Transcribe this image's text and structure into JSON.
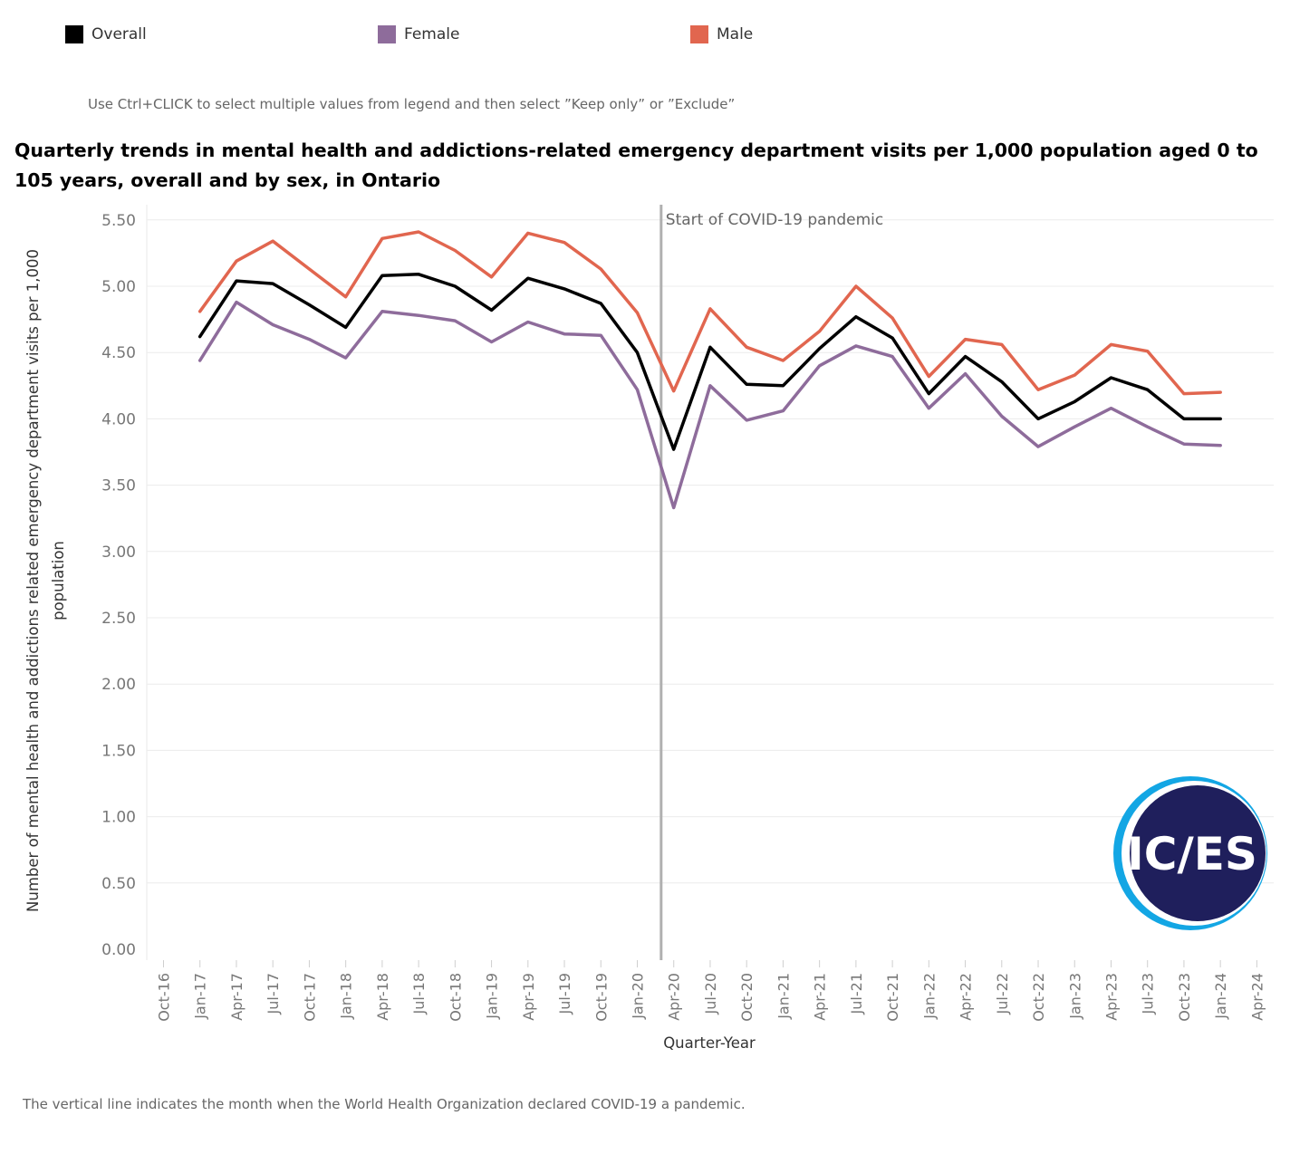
{
  "legend": {
    "items": [
      {
        "label": "Overall",
        "color": "#000000"
      },
      {
        "label": "Female",
        "color": "#8e6c9b"
      },
      {
        "label": "Male",
        "color": "#e1664f"
      }
    ]
  },
  "hint": "Use Ctrl+CLICK to select multiple values from legend and then select ”Keep only” or ”Exclude”",
  "title": "Quarterly trends in mental health and addictions-related emergency department visits per 1,000 population aged 0 to 105 years, overall and by sex, in Ontario",
  "footnote": "The vertical line indicates the month when the World Health Organization declared COVID-19 a pandemic.",
  "logo": {
    "text": "IC/ES"
  },
  "chart_data": {
    "type": "line",
    "xlabel": "Quarter-Year",
    "ylabel_lines": [
      "Number of mental health and addictions related emergency department visits per 1,000",
      "population"
    ],
    "ylim": [
      0,
      5.7
    ],
    "yticks": [
      "0.00",
      "0.50",
      "1.00",
      "1.50",
      "2.00",
      "2.50",
      "3.00",
      "3.50",
      "4.00",
      "4.50",
      "5.00",
      "5.50"
    ],
    "x_tick_labels": [
      "Oct-16",
      "Jan-17",
      "Apr-17",
      "Jul-17",
      "Oct-17",
      "Jan-18",
      "Apr-18",
      "Jul-18",
      "Oct-18",
      "Jan-19",
      "Apr-19",
      "Jul-19",
      "Oct-19",
      "Jan-20",
      "Apr-20",
      "Jul-20",
      "Oct-20",
      "Jan-21",
      "Apr-21",
      "Jul-21",
      "Oct-21",
      "Jan-22",
      "Apr-22",
      "Jul-22",
      "Oct-22",
      "Jan-23",
      "Apr-23",
      "Jul-23",
      "Oct-23",
      "Jan-24",
      "Apr-24"
    ],
    "x": [
      "Jan-17",
      "Apr-17",
      "Jul-17",
      "Oct-17",
      "Jan-18",
      "Apr-18",
      "Jul-18",
      "Oct-18",
      "Jan-19",
      "Apr-19",
      "Jul-19",
      "Oct-19",
      "Jan-20",
      "Apr-20",
      "Jul-20",
      "Oct-20",
      "Jan-21",
      "Apr-21",
      "Jul-21",
      "Oct-21",
      "Jan-22",
      "Apr-22",
      "Jul-22",
      "Oct-22",
      "Jan-23",
      "Apr-23",
      "Jul-23",
      "Oct-23",
      "Jan-24"
    ],
    "series": [
      {
        "name": "Male",
        "color": "#e1664f",
        "values": [
          4.81,
          5.19,
          5.34,
          5.13,
          4.92,
          5.36,
          5.41,
          5.27,
          5.07,
          5.4,
          5.33,
          5.13,
          4.8,
          4.21,
          4.83,
          4.54,
          4.44,
          4.66,
          5.0,
          4.76,
          4.32,
          4.6,
          4.56,
          4.22,
          4.33,
          4.56,
          4.51,
          4.19,
          4.2
        ]
      },
      {
        "name": "Female",
        "color": "#8e6c9b",
        "values": [
          4.44,
          4.88,
          4.71,
          4.6,
          4.46,
          4.81,
          4.78,
          4.74,
          4.58,
          4.73,
          4.64,
          4.63,
          4.22,
          3.33,
          4.25,
          3.99,
          4.06,
          4.4,
          4.55,
          4.47,
          4.08,
          4.34,
          4.02,
          3.79,
          3.94,
          4.08,
          3.94,
          3.81,
          3.8
        ]
      },
      {
        "name": "Overall",
        "color": "#000000",
        "values": [
          4.62,
          5.04,
          5.02,
          4.86,
          4.69,
          5.08,
          5.09,
          5.0,
          4.82,
          5.06,
          4.98,
          4.87,
          4.5,
          3.77,
          4.54,
          4.26,
          4.25,
          4.53,
          4.77,
          4.61,
          4.19,
          4.47,
          4.28,
          4.0,
          4.13,
          4.31,
          4.22,
          4.0,
          4.0
        ]
      }
    ],
    "annotation": {
      "label": "Start of COVID-19 pandemic",
      "x": "Mar-20"
    },
    "grid": true,
    "legend_position": "top"
  }
}
